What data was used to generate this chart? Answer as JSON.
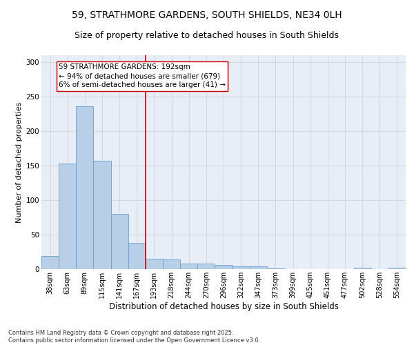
{
  "title_line1": "59, STRATHMORE GARDENS, SOUTH SHIELDS, NE34 0LH",
  "title_line2": "Size of property relative to detached houses in South Shields",
  "xlabel": "Distribution of detached houses by size in South Shields",
  "ylabel": "Number of detached properties",
  "categories": [
    "38sqm",
    "63sqm",
    "89sqm",
    "115sqm",
    "141sqm",
    "167sqm",
    "193sqm",
    "218sqm",
    "244sqm",
    "270sqm",
    "296sqm",
    "322sqm",
    "347sqm",
    "373sqm",
    "399sqm",
    "425sqm",
    "451sqm",
    "477sqm",
    "502sqm",
    "528sqm",
    "554sqm"
  ],
  "values": [
    19,
    153,
    236,
    157,
    80,
    38,
    15,
    14,
    8,
    8,
    6,
    4,
    4,
    1,
    0,
    0,
    0,
    0,
    2,
    0,
    2
  ],
  "bar_color": "#b8cfe8",
  "bar_edge_color": "#6a9fd0",
  "vline_color": "#cc0000",
  "annotation_text": "59 STRATHMORE GARDENS: 192sqm\n← 94% of detached houses are smaller (679)\n6% of semi-detached houses are larger (41) →",
  "annotation_box_color": "#ffffff",
  "annotation_box_edge": "#cc0000",
  "ylim": [
    0,
    310
  ],
  "yticks": [
    0,
    50,
    100,
    150,
    200,
    250,
    300
  ],
  "grid_color": "#cccccc",
  "bg_color": "#e8eef8",
  "footer_text": "Contains HM Land Registry data © Crown copyright and database right 2025.\nContains public sector information licensed under the Open Government Licence v3.0.",
  "title_fontsize": 10,
  "subtitle_fontsize": 9,
  "tick_fontsize": 7,
  "ylabel_fontsize": 8,
  "xlabel_fontsize": 8.5,
  "annotation_fontsize": 7.5,
  "footer_fontsize": 6
}
